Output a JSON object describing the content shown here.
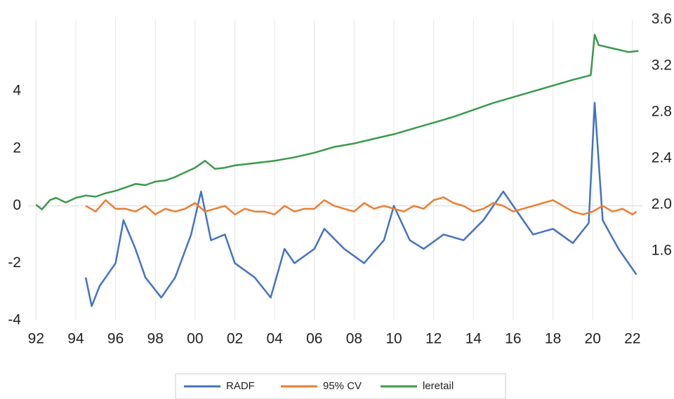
{
  "chart_data": {
    "type": "line",
    "xlim": [
      1991.6,
      2022.5
    ],
    "xticks": [
      {
        "value": 1992,
        "label": "92"
      },
      {
        "value": 1994,
        "label": "94"
      },
      {
        "value": 1996,
        "label": "96"
      },
      {
        "value": 1998,
        "label": "98"
      },
      {
        "value": 2000,
        "label": "00"
      },
      {
        "value": 2002,
        "label": "02"
      },
      {
        "value": 2004,
        "label": "04"
      },
      {
        "value": 2006,
        "label": "06"
      },
      {
        "value": 2008,
        "label": "08"
      },
      {
        "value": 2010,
        "label": "10"
      },
      {
        "value": 2012,
        "label": "12"
      },
      {
        "value": 2014,
        "label": "14"
      },
      {
        "value": 2016,
        "label": "16"
      },
      {
        "value": 2018,
        "label": "18"
      },
      {
        "value": 2020,
        "label": "20"
      },
      {
        "value": 2022,
        "label": "22"
      }
    ],
    "ylim": [
      -4,
      6.5
    ],
    "yticks": [
      -4,
      -2,
      0,
      2,
      4
    ],
    "y2lim": [
      1.0,
      3.6
    ],
    "y2ticks": [
      1.6,
      {
        "value": 2.0,
        "label": "2.0"
      },
      2.4,
      2.8,
      3.2,
      3.6
    ],
    "grid": true,
    "legend": "bottom",
    "series": [
      {
        "name": "RADF",
        "color": "#4472c4",
        "x": [
          1994.5,
          1994.8,
          1995.2,
          1995.5,
          1996.0,
          1996.4,
          1997.0,
          1997.5,
          1998.3,
          1999.0,
          1999.8,
          2000.3,
          2000.8,
          2001.5,
          2002.0,
          2003.0,
          2003.8,
          2004.5,
          2005.0,
          2006.0,
          2006.5,
          2007.5,
          2008.5,
          2009.5,
          2010.0,
          2010.8,
          2011.5,
          2012.5,
          2013.5,
          2014.5,
          2015.5,
          2016.5,
          2017.0,
          2018.0,
          2019.0,
          2019.8,
          2020.1,
          2020.5,
          2021.3,
          2021.8,
          2022.2
        ],
        "values": [
          -2.5,
          -3.5,
          -2.8,
          -2.5,
          -2.0,
          -0.5,
          -1.5,
          -2.5,
          -3.2,
          -2.5,
          -1.0,
          0.5,
          -1.2,
          -1.0,
          -2.0,
          -2.5,
          -3.2,
          -1.5,
          -2.0,
          -1.5,
          -0.8,
          -1.5,
          -2.0,
          -1.2,
          0.0,
          -1.2,
          -1.5,
          -1.0,
          -1.2,
          -0.5,
          0.5,
          -0.5,
          -1.0,
          -0.8,
          -1.3,
          -0.6,
          3.6,
          -0.5,
          -1.5,
          -2.0,
          -2.4
        ]
      },
      {
        "name": "95% CV",
        "color": "#ed7d31",
        "x": [
          1994.5,
          1995.0,
          1995.5,
          1996.0,
          1996.5,
          1997.0,
          1997.5,
          1998.0,
          1998.5,
          1999.0,
          1999.5,
          2000.0,
          2000.5,
          2001.0,
          2001.5,
          2002.0,
          2002.5,
          2003.0,
          2003.5,
          2004.0,
          2004.5,
          2005.0,
          2005.5,
          2006.0,
          2006.5,
          2007.0,
          2007.5,
          2008.0,
          2008.5,
          2009.0,
          2009.5,
          2010.0,
          2010.5,
          2011.0,
          2011.5,
          2012.0,
          2012.5,
          2013.0,
          2013.5,
          2014.0,
          2014.5,
          2015.0,
          2015.5,
          2016.0,
          2016.5,
          2017.0,
          2017.5,
          2018.0,
          2018.5,
          2019.0,
          2019.5,
          2020.0,
          2020.5,
          2021.0,
          2021.5,
          2022.0,
          2022.2
        ],
        "values": [
          0.0,
          -0.2,
          0.2,
          -0.1,
          -0.1,
          -0.2,
          0.0,
          -0.3,
          -0.1,
          -0.2,
          -0.1,
          0.1,
          -0.2,
          -0.1,
          0.0,
          -0.3,
          -0.1,
          -0.2,
          -0.2,
          -0.3,
          0.0,
          -0.2,
          -0.1,
          -0.1,
          0.2,
          0.0,
          -0.1,
          -0.2,
          0.1,
          -0.1,
          0.0,
          -0.1,
          -0.2,
          0.0,
          -0.1,
          0.2,
          0.3,
          0.1,
          0.0,
          -0.2,
          -0.1,
          0.1,
          0.0,
          -0.2,
          -0.1,
          0.0,
          0.1,
          0.2,
          0.0,
          -0.2,
          -0.3,
          -0.2,
          0.0,
          -0.2,
          -0.1,
          -0.3,
          -0.2
        ]
      },
      {
        "name": "leretail",
        "color": "#3a9a4a",
        "axis": "y2",
        "x": [
          1992.0,
          1992.3,
          1992.7,
          1993.0,
          1993.5,
          1994.0,
          1994.5,
          1995.0,
          1995.5,
          1996.0,
          1996.5,
          1997.0,
          1997.5,
          1998.0,
          1998.5,
          1999.0,
          1999.5,
          2000.0,
          2000.5,
          2001.0,
          2001.5,
          2002.0,
          2003.0,
          2004.0,
          2005.0,
          2006.0,
          2007.0,
          2008.0,
          2009.0,
          2010.0,
          2011.0,
          2012.0,
          2013.0,
          2014.0,
          2015.0,
          2016.0,
          2017.0,
          2018.0,
          2019.0,
          2019.9,
          2020.1,
          2020.3,
          2020.8,
          2021.3,
          2021.8,
          2022.3
        ],
        "values": [
          2.0,
          1.96,
          2.04,
          2.06,
          2.02,
          2.06,
          2.08,
          2.07,
          2.1,
          2.12,
          2.15,
          2.18,
          2.17,
          2.2,
          2.21,
          2.24,
          2.28,
          2.32,
          2.38,
          2.31,
          2.32,
          2.34,
          2.36,
          2.38,
          2.41,
          2.45,
          2.5,
          2.53,
          2.57,
          2.61,
          2.66,
          2.71,
          2.76,
          2.82,
          2.88,
          2.93,
          2.98,
          3.03,
          3.08,
          3.12,
          3.47,
          3.38,
          3.36,
          3.34,
          3.32,
          3.33
        ]
      }
    ]
  }
}
